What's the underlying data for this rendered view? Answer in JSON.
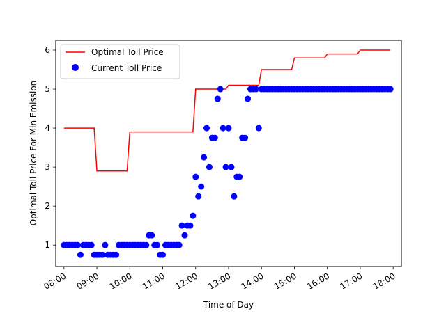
{
  "chart_data": {
    "type": "line+scatter",
    "xlabel": "Time of Day",
    "ylabel": "Optimal Toll Price For Min Emission",
    "xlim": [
      "07:45",
      "18:15"
    ],
    "ylim": [
      0.45,
      6.25
    ],
    "x_ticks": [
      "08:00",
      "09:00",
      "10:00",
      "11:00",
      "12:00",
      "13:00",
      "14:00",
      "15:00",
      "16:00",
      "17:00",
      "18:00"
    ],
    "y_ticks": [
      1,
      2,
      3,
      4,
      5,
      6
    ],
    "grid": false,
    "legend_position": "upper-left",
    "series": [
      {
        "name": "Optimal Toll Price",
        "kind": "line",
        "color": "#ff0000",
        "points": [
          [
            "08:00",
            4.0
          ],
          [
            "08:55",
            4.0
          ],
          [
            "09:00",
            2.9
          ],
          [
            "09:55",
            2.9
          ],
          [
            "10:00",
            3.9
          ],
          [
            "11:55",
            3.9
          ],
          [
            "12:00",
            5.0
          ],
          [
            "12:55",
            5.0
          ],
          [
            "13:00",
            5.1
          ],
          [
            "13:55",
            5.1
          ],
          [
            "14:00",
            5.5
          ],
          [
            "14:55",
            5.5
          ],
          [
            "15:00",
            5.8
          ],
          [
            "15:55",
            5.8
          ],
          [
            "16:00",
            5.9
          ],
          [
            "16:55",
            5.9
          ],
          [
            "17:00",
            6.0
          ],
          [
            "17:55",
            6.0
          ]
        ]
      },
      {
        "name": "Current Toll Price",
        "kind": "scatter",
        "color": "#0000ff",
        "points": [
          [
            "08:00",
            1.0
          ],
          [
            "08:05",
            1.0
          ],
          [
            "08:10",
            1.0
          ],
          [
            "08:15",
            1.0
          ],
          [
            "08:20",
            1.0
          ],
          [
            "08:25",
            1.0
          ],
          [
            "08:30",
            0.75
          ],
          [
            "08:35",
            1.0
          ],
          [
            "08:40",
            1.0
          ],
          [
            "08:45",
            1.0
          ],
          [
            "08:50",
            1.0
          ],
          [
            "08:55",
            0.75
          ],
          [
            "09:00",
            0.75
          ],
          [
            "09:05",
            0.75
          ],
          [
            "09:10",
            0.75
          ],
          [
            "09:15",
            1.0
          ],
          [
            "09:20",
            0.75
          ],
          [
            "09:25",
            0.75
          ],
          [
            "09:30",
            0.75
          ],
          [
            "09:35",
            0.75
          ],
          [
            "09:40",
            1.0
          ],
          [
            "09:45",
            1.0
          ],
          [
            "09:50",
            1.0
          ],
          [
            "09:55",
            1.0
          ],
          [
            "10:00",
            1.0
          ],
          [
            "10:05",
            1.0
          ],
          [
            "10:10",
            1.0
          ],
          [
            "10:15",
            1.0
          ],
          [
            "10:20",
            1.0
          ],
          [
            "10:25",
            1.0
          ],
          [
            "10:30",
            1.0
          ],
          [
            "10:35",
            1.25
          ],
          [
            "10:40",
            1.25
          ],
          [
            "10:45",
            1.0
          ],
          [
            "10:50",
            1.0
          ],
          [
            "10:55",
            0.75
          ],
          [
            "11:00",
            0.75
          ],
          [
            "11:05",
            1.0
          ],
          [
            "11:10",
            1.0
          ],
          [
            "11:15",
            1.0
          ],
          [
            "11:20",
            1.0
          ],
          [
            "11:25",
            1.0
          ],
          [
            "11:30",
            1.0
          ],
          [
            "11:35",
            1.5
          ],
          [
            "11:40",
            1.25
          ],
          [
            "11:45",
            1.5
          ],
          [
            "11:50",
            1.5
          ],
          [
            "11:55",
            1.75
          ],
          [
            "12:00",
            2.75
          ],
          [
            "12:05",
            2.25
          ],
          [
            "12:10",
            2.5
          ],
          [
            "12:15",
            3.25
          ],
          [
            "12:20",
            4.0
          ],
          [
            "12:25",
            3.0
          ],
          [
            "12:30",
            3.75
          ],
          [
            "12:35",
            3.75
          ],
          [
            "12:40",
            4.75
          ],
          [
            "12:45",
            5.0
          ],
          [
            "12:50",
            4.0
          ],
          [
            "12:55",
            3.0
          ],
          [
            "13:00",
            4.0
          ],
          [
            "13:05",
            3.0
          ],
          [
            "13:10",
            2.25
          ],
          [
            "13:15",
            2.75
          ],
          [
            "13:20",
            2.75
          ],
          [
            "13:25",
            3.75
          ],
          [
            "13:30",
            3.75
          ],
          [
            "13:35",
            4.75
          ],
          [
            "13:40",
            5.0
          ],
          [
            "13:45",
            5.0
          ],
          [
            "13:50",
            5.0
          ],
          [
            "13:55",
            4.0
          ],
          [
            "14:00",
            5.0
          ],
          [
            "14:05",
            5.0
          ],
          [
            "14:10",
            5.0
          ],
          [
            "14:15",
            5.0
          ],
          [
            "14:20",
            5.0
          ],
          [
            "14:25",
            5.0
          ],
          [
            "14:30",
            5.0
          ],
          [
            "14:35",
            5.0
          ],
          [
            "14:40",
            5.0
          ],
          [
            "14:45",
            5.0
          ],
          [
            "14:50",
            5.0
          ],
          [
            "14:55",
            5.0
          ],
          [
            "15:00",
            5.0
          ],
          [
            "15:05",
            5.0
          ],
          [
            "15:10",
            5.0
          ],
          [
            "15:15",
            5.0
          ],
          [
            "15:20",
            5.0
          ],
          [
            "15:25",
            5.0
          ],
          [
            "15:30",
            5.0
          ],
          [
            "15:35",
            5.0
          ],
          [
            "15:40",
            5.0
          ],
          [
            "15:45",
            5.0
          ],
          [
            "15:50",
            5.0
          ],
          [
            "15:55",
            5.0
          ],
          [
            "16:00",
            5.0
          ],
          [
            "16:05",
            5.0
          ],
          [
            "16:10",
            5.0
          ],
          [
            "16:15",
            5.0
          ],
          [
            "16:20",
            5.0
          ],
          [
            "16:25",
            5.0
          ],
          [
            "16:30",
            5.0
          ],
          [
            "16:35",
            5.0
          ],
          [
            "16:40",
            5.0
          ],
          [
            "16:45",
            5.0
          ],
          [
            "16:50",
            5.0
          ],
          [
            "16:55",
            5.0
          ],
          [
            "17:00",
            5.0
          ],
          [
            "17:05",
            5.0
          ],
          [
            "17:10",
            5.0
          ],
          [
            "17:15",
            5.0
          ],
          [
            "17:20",
            5.0
          ],
          [
            "17:25",
            5.0
          ],
          [
            "17:30",
            5.0
          ],
          [
            "17:35",
            5.0
          ],
          [
            "17:40",
            5.0
          ],
          [
            "17:45",
            5.0
          ],
          [
            "17:50",
            5.0
          ],
          [
            "17:55",
            5.0
          ]
        ]
      }
    ]
  }
}
